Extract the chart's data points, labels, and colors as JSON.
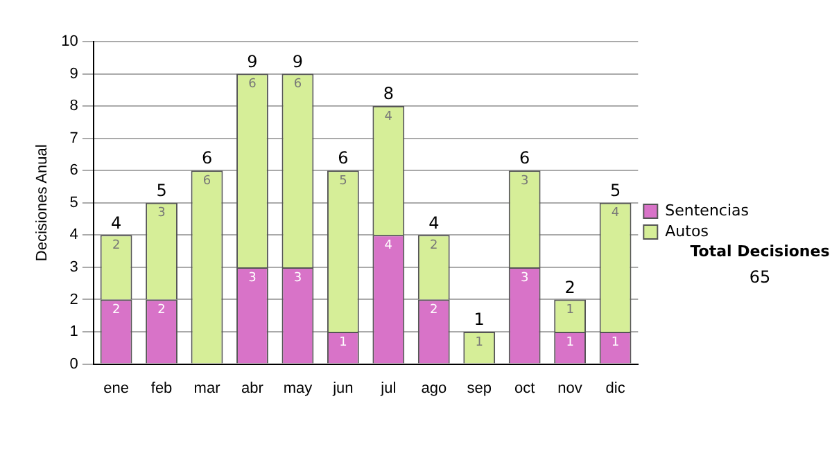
{
  "chart_data": {
    "type": "bar",
    "stacked": true,
    "ylabel": "Decisiones Anual",
    "categories": [
      "ene",
      "feb",
      "mar",
      "abr",
      "may",
      "jun",
      "jul",
      "ago",
      "sep",
      "oct",
      "nov",
      "dic"
    ],
    "series": [
      {
        "name": "Sentencias",
        "color": "#d873c8",
        "values": [
          2,
          2,
          0,
          3,
          3,
          1,
          4,
          2,
          0,
          3,
          1,
          1
        ],
        "value_labels": [
          "2",
          "2",
          null,
          "3",
          "3",
          "1",
          "4",
          "2",
          null,
          "3",
          "1",
          "1"
        ]
      },
      {
        "name": "Autos",
        "color": "#d6ee98",
        "values": [
          2,
          3,
          6,
          6,
          6,
          5,
          4,
          2,
          1,
          3,
          1,
          4
        ],
        "value_labels": [
          "2",
          "3",
          "6",
          "6",
          "6",
          "5",
          "4",
          "2",
          "1",
          "3",
          "1",
          "4"
        ]
      }
    ],
    "totals": [
      "4",
      "5",
      "6",
      "9",
      "9",
      "6",
      "8",
      "4",
      "1",
      "6",
      "2",
      "5"
    ],
    "ylim": [
      0,
      10
    ],
    "yticks": [
      0,
      1,
      2,
      3,
      4,
      5,
      6,
      7,
      8,
      9,
      10
    ],
    "grid": "y",
    "legend": "right",
    "annotations": [
      "Total Decisiones",
      "65"
    ]
  }
}
